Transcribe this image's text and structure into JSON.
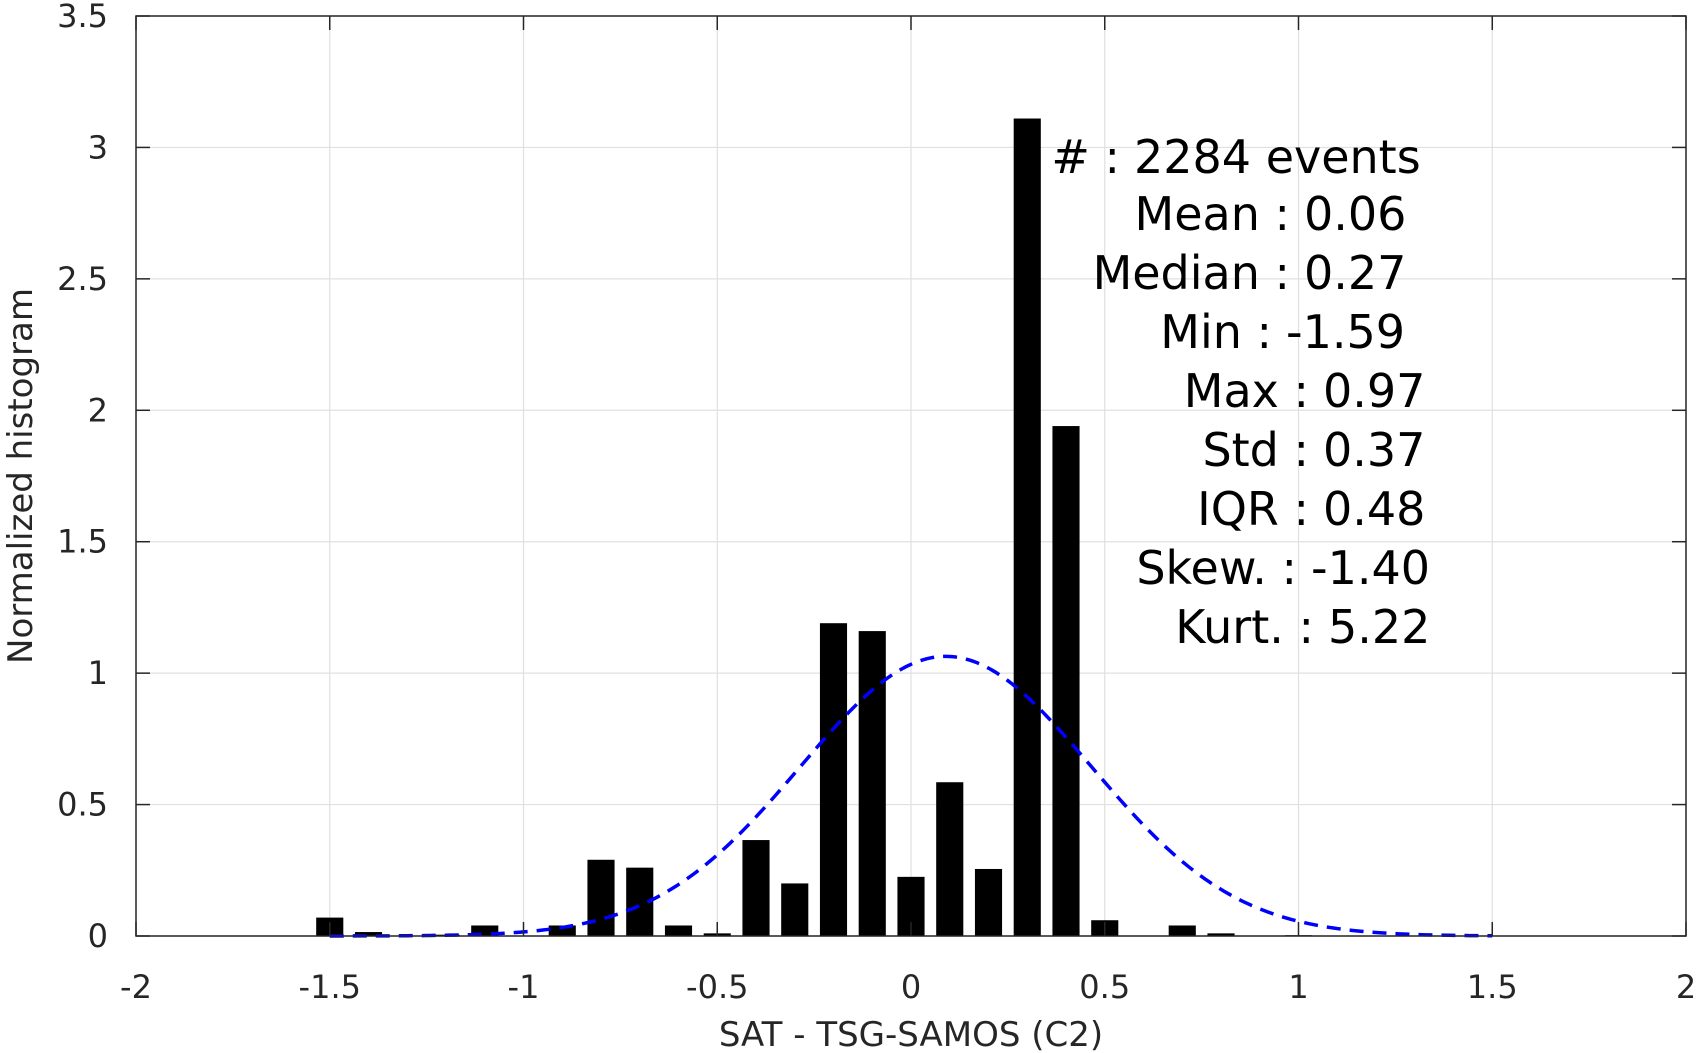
{
  "chart_data": {
    "type": "bar",
    "xlabel": "SAT - TSG-SAMOS (C2)",
    "ylabel": "Normalized histogram",
    "xlim": [
      -2,
      2
    ],
    "ylim": [
      0,
      3.5
    ],
    "grid": true,
    "x_ticks": [
      "-2",
      "-1.5",
      "-1",
      "-0.5",
      "0",
      "0.5",
      "1",
      "1.5",
      "2"
    ],
    "y_ticks": [
      "0",
      "0.5",
      "1",
      "1.5",
      "2",
      "2.5",
      "3",
      "3.5"
    ],
    "bar_width": 0.07,
    "bar_color": "#000000",
    "bars": [
      {
        "x": -1.5,
        "y": 0.07
      },
      {
        "x": -1.4,
        "y": 0.015
      },
      {
        "x": -1.3,
        "y": 0.0
      },
      {
        "x": -1.2,
        "y": 0.005
      },
      {
        "x": -1.1,
        "y": 0.04
      },
      {
        "x": -1.0,
        "y": 0.0
      },
      {
        "x": -0.9,
        "y": 0.04
      },
      {
        "x": -0.8,
        "y": 0.29
      },
      {
        "x": -0.7,
        "y": 0.26
      },
      {
        "x": -0.6,
        "y": 0.04
      },
      {
        "x": -0.5,
        "y": 0.01
      },
      {
        "x": -0.4,
        "y": 0.365
      },
      {
        "x": -0.3,
        "y": 0.2
      },
      {
        "x": -0.2,
        "y": 1.19
      },
      {
        "x": -0.1,
        "y": 1.16
      },
      {
        "x": 0.0,
        "y": 0.225
      },
      {
        "x": 0.1,
        "y": 0.585
      },
      {
        "x": 0.2,
        "y": 0.255
      },
      {
        "x": 0.3,
        "y": 3.11
      },
      {
        "x": 0.4,
        "y": 1.94
      },
      {
        "x": 0.5,
        "y": 0.06
      },
      {
        "x": 0.6,
        "y": 0.0
      },
      {
        "x": 0.7,
        "y": 0.04
      },
      {
        "x": 0.8,
        "y": 0.01
      },
      {
        "x": 0.9,
        "y": 0.0
      },
      {
        "x": 1.0,
        "y": 0.003
      }
    ],
    "fit_curve": {
      "type": "normal",
      "mean": 0.09,
      "std": 0.375,
      "x_range": [
        -1.5,
        1.5
      ],
      "color": "#0000ff",
      "style": "dashed"
    },
    "annotations": [
      {
        "label": "#  :",
        "value": "2284 events"
      },
      {
        "label": "Mean :",
        "value": "0.06"
      },
      {
        "label": "Median :",
        "value": "0.27"
      },
      {
        "label": "Min :",
        "value": "-1.59"
      },
      {
        "label": "Max :",
        "value": "0.97"
      },
      {
        "label": "Std :",
        "value": "0.37"
      },
      {
        "label": "IQR :",
        "value": "0.48"
      },
      {
        "label": "Skew. :",
        "value": "-1.40"
      },
      {
        "label": "Kurt. :",
        "value": "5.22"
      }
    ]
  }
}
